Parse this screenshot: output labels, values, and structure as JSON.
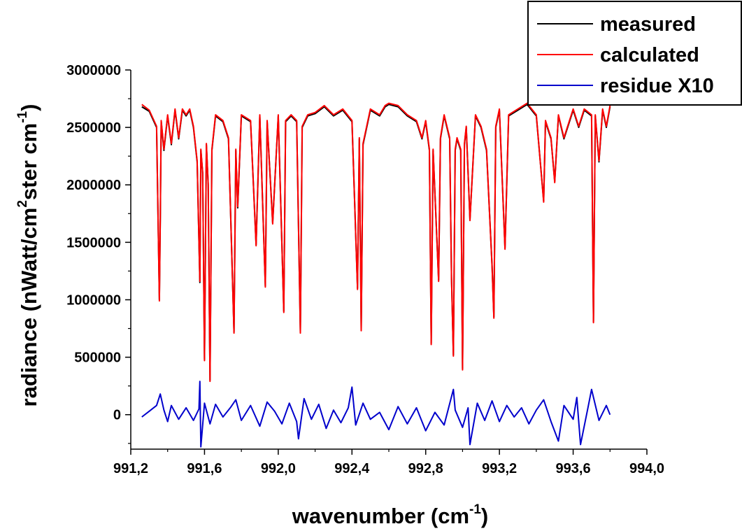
{
  "chart_data": {
    "type": "line",
    "xlabel": "wavenumber (cm-1)",
    "xlabel_main": "wavenumber (cm",
    "xlabel_sup": "-1",
    "xlabel_close": ")",
    "ylabel": "radiance (nWatt/cm2ster cm-1)",
    "ylabel_part1": "radiance (nWatt/cm",
    "ylabel_sup1": "2",
    "ylabel_part2": "ster cm",
    "ylabel_sup2": "-1",
    "ylabel_close": ")",
    "xlim": [
      991.2,
      994.0
    ],
    "ylim": [
      -300000,
      3000000
    ],
    "x_ticks": [
      991.2,
      991.6,
      992.0,
      992.4,
      992.8,
      993.2,
      993.6,
      994.0
    ],
    "x_tick_labels": [
      "991,2",
      "991,6",
      "992,0",
      "992,4",
      "992,8",
      "993,2",
      "993,6",
      "994,0"
    ],
    "y_ticks": [
      0,
      500000,
      1000000,
      1500000,
      2000000,
      2500000,
      3000000
    ],
    "y_tick_labels": [
      "0",
      "500000",
      "1000000",
      "1500000",
      "2000000",
      "2500000",
      "3000000"
    ],
    "legend_position": "top-right",
    "grid": false,
    "series": [
      {
        "name": "measured",
        "color": "#000000",
        "x": [
          991.26,
          991.3,
          991.34,
          991.355,
          991.36,
          991.365,
          991.38,
          991.4,
          991.42,
          991.44,
          991.46,
          991.48,
          991.5,
          991.52,
          991.54,
          991.56,
          991.575,
          991.58,
          991.59,
          991.6,
          991.61,
          991.62,
          991.63,
          991.64,
          991.66,
          991.7,
          991.73,
          991.76,
          991.77,
          991.78,
          991.8,
          991.85,
          991.88,
          991.9,
          991.93,
          991.94,
          991.97,
          992.0,
          992.03,
          992.04,
          992.07,
          992.1,
          992.12,
          992.13,
          992.16,
          992.2,
          992.25,
          992.3,
          992.35,
          992.4,
          992.43,
          992.44,
          992.45,
          992.46,
          992.5,
          992.55,
          992.58,
          992.6,
          992.65,
          992.7,
          992.75,
          992.78,
          992.8,
          992.82,
          992.83,
          992.84,
          992.87,
          992.88,
          992.9,
          992.93,
          992.94,
          992.95,
          992.96,
          992.97,
          992.99,
          993.0,
          993.01,
          993.02,
          993.04,
          993.07,
          993.1,
          993.13,
          993.16,
          993.17,
          993.18,
          993.2,
          993.23,
          993.25,
          993.3,
          993.35,
          993.4,
          993.44,
          993.45,
          993.48,
          993.5,
          993.52,
          993.55,
          993.6,
          993.63,
          993.66,
          993.7,
          993.71,
          993.72,
          993.74,
          993.76,
          993.78,
          993.8
        ],
        "values": [
          2680000,
          2640000,
          2500000,
          1000000,
          1700000,
          2550000,
          2300000,
          2600000,
          2350000,
          2650000,
          2400000,
          2650000,
          2600000,
          2650000,
          2500000,
          2200000,
          1150000,
          2300000,
          2100000,
          480000,
          2350000,
          2000000,
          300000,
          2300000,
          2600000,
          2550000,
          2400000,
          720000,
          2300000,
          1800000,
          2600000,
          2550000,
          1480000,
          2600000,
          1120000,
          2550000,
          1670000,
          2600000,
          900000,
          2550000,
          2600000,
          2550000,
          720000,
          2500000,
          2600000,
          2620000,
          2680000,
          2600000,
          2650000,
          2550000,
          1100000,
          2400000,
          740000,
          2350000,
          2650000,
          2600000,
          2680000,
          2700000,
          2680000,
          2600000,
          2550000,
          2400000,
          2550000,
          2300000,
          620000,
          2300000,
          1170000,
          2400000,
          2600000,
          2400000,
          1200000,
          520000,
          2300000,
          2400000,
          2300000,
          400000,
          2350000,
          2500000,
          1700000,
          2600000,
          2500000,
          2300000,
          1300000,
          850000,
          2500000,
          2650000,
          1450000,
          2600000,
          2650000,
          2700000,
          2600000,
          1860000,
          2550000,
          2400000,
          2030000,
          2600000,
          2400000,
          2650000,
          2500000,
          2650000,
          2600000,
          810000,
          2600000,
          2200000,
          2650000,
          2500000,
          2680000
        ]
      },
      {
        "name": "calculated",
        "color": "#ff0000",
        "x": [
          991.26,
          991.3,
          991.34,
          991.355,
          991.36,
          991.365,
          991.38,
          991.4,
          991.42,
          991.44,
          991.46,
          991.48,
          991.5,
          991.52,
          991.54,
          991.56,
          991.575,
          991.58,
          991.59,
          991.6,
          991.61,
          991.62,
          991.63,
          991.64,
          991.66,
          991.7,
          991.73,
          991.76,
          991.77,
          991.78,
          991.8,
          991.85,
          991.88,
          991.9,
          991.93,
          991.94,
          991.97,
          992.0,
          992.03,
          992.04,
          992.07,
          992.1,
          992.12,
          992.13,
          992.16,
          992.2,
          992.25,
          992.3,
          992.35,
          992.4,
          992.43,
          992.44,
          992.45,
          992.46,
          992.5,
          992.55,
          992.58,
          992.6,
          992.65,
          992.7,
          992.75,
          992.78,
          992.8,
          992.82,
          992.83,
          992.84,
          992.87,
          992.88,
          992.9,
          992.93,
          992.94,
          992.95,
          992.96,
          992.97,
          992.99,
          993.0,
          993.01,
          993.02,
          993.04,
          993.07,
          993.1,
          993.13,
          993.16,
          993.17,
          993.18,
          993.2,
          993.23,
          993.25,
          993.3,
          993.35,
          993.4,
          993.44,
          993.45,
          993.48,
          993.5,
          993.52,
          993.55,
          993.6,
          993.63,
          993.66,
          993.7,
          993.71,
          993.72,
          993.74,
          993.76,
          993.78,
          993.8
        ],
        "values": [
          2700000,
          2650000,
          2510000,
          990000,
          1720000,
          2560000,
          2310000,
          2610000,
          2360000,
          2660000,
          2410000,
          2660000,
          2610000,
          2660000,
          2510000,
          2210000,
          1160000,
          2310000,
          2110000,
          470000,
          2360000,
          2010000,
          290000,
          2310000,
          2610000,
          2560000,
          2410000,
          710000,
          2310000,
          1810000,
          2610000,
          2560000,
          1470000,
          2610000,
          1110000,
          2560000,
          1660000,
          2610000,
          890000,
          2560000,
          2610000,
          2560000,
          710000,
          2510000,
          2610000,
          2630000,
          2690000,
          2610000,
          2660000,
          2560000,
          1090000,
          2410000,
          730000,
          2360000,
          2660000,
          2610000,
          2690000,
          2710000,
          2690000,
          2610000,
          2560000,
          2410000,
          2560000,
          2310000,
          610000,
          2310000,
          1160000,
          2410000,
          2610000,
          2410000,
          1190000,
          510000,
          2310000,
          2410000,
          2310000,
          390000,
          2360000,
          2510000,
          1690000,
          2610000,
          2510000,
          2310000,
          1290000,
          840000,
          2510000,
          2660000,
          1440000,
          2610000,
          2660000,
          2710000,
          2610000,
          1850000,
          2560000,
          2410000,
          2020000,
          2610000,
          2410000,
          2660000,
          2510000,
          2660000,
          2610000,
          800000,
          2610000,
          2210000,
          2660000,
          2510000,
          2690000
        ]
      },
      {
        "name": "residue X10",
        "color": "#0000cc",
        "x": [
          991.26,
          991.3,
          991.34,
          991.36,
          991.38,
          991.4,
          991.42,
          991.46,
          991.5,
          991.54,
          991.57,
          991.575,
          991.58,
          991.6,
          991.63,
          991.66,
          991.7,
          991.74,
          991.77,
          991.8,
          991.85,
          991.9,
          991.94,
          991.98,
          992.02,
          992.06,
          992.1,
          992.11,
          992.14,
          992.18,
          992.22,
          992.26,
          992.3,
          992.34,
          992.38,
          992.4,
          992.42,
          992.46,
          992.5,
          992.55,
          992.6,
          992.65,
          992.7,
          992.75,
          992.8,
          992.85,
          992.9,
          992.95,
          992.96,
          993.0,
          993.03,
          993.04,
          993.08,
          993.12,
          993.16,
          993.2,
          993.24,
          993.28,
          993.32,
          993.36,
          993.4,
          993.44,
          993.48,
          993.52,
          993.55,
          993.6,
          993.62,
          993.64,
          993.68,
          993.7,
          993.74,
          993.78,
          993.8
        ],
        "values": [
          -20000,
          30000,
          80000,
          180000,
          40000,
          -60000,
          80000,
          -40000,
          60000,
          -50000,
          50000,
          290000,
          -280000,
          100000,
          -80000,
          90000,
          -20000,
          60000,
          130000,
          -50000,
          80000,
          -100000,
          110000,
          30000,
          -80000,
          100000,
          -60000,
          -210000,
          140000,
          -40000,
          90000,
          -120000,
          40000,
          -70000,
          60000,
          240000,
          -90000,
          100000,
          -40000,
          20000,
          -130000,
          70000,
          -80000,
          60000,
          -140000,
          20000,
          -90000,
          220000,
          40000,
          -110000,
          60000,
          -260000,
          100000,
          -50000,
          120000,
          -60000,
          80000,
          -20000,
          60000,
          -80000,
          40000,
          130000,
          -60000,
          -230000,
          80000,
          -40000,
          150000,
          -260000,
          60000,
          220000,
          -50000,
          80000,
          0
        ]
      }
    ]
  }
}
